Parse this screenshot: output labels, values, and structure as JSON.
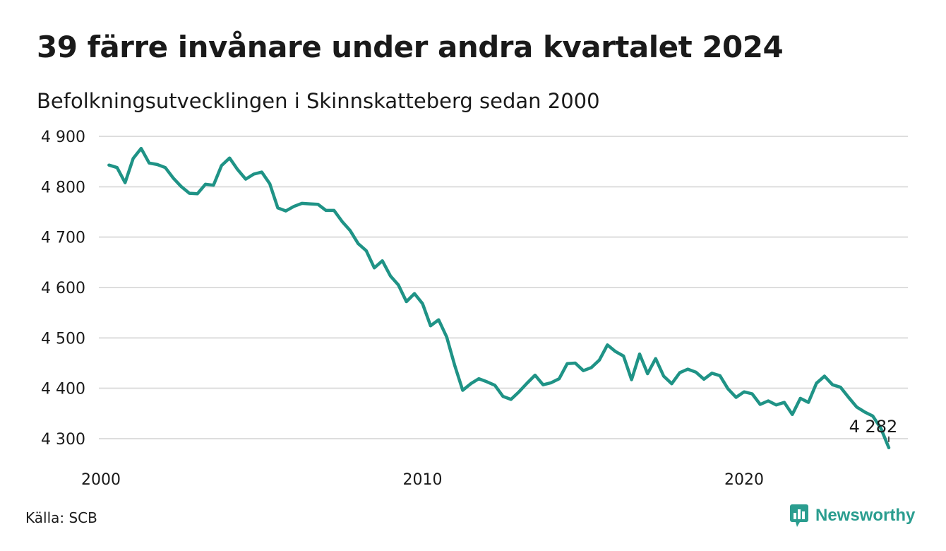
{
  "title": "39 färre invånare under andra kvartalet 2024",
  "subtitle": "Befolkningsutvecklingen i Skinnskatteberg sedan 2000",
  "source": "Källa: SCB",
  "brand": {
    "name": "Newsworthy",
    "icon": "newsworthy-logo-icon",
    "color": "#2a9d8f"
  },
  "colors": {
    "line": "#1f9386",
    "grid": "#dddddd",
    "text": "#1a1a1a"
  },
  "chart_data": {
    "type": "line",
    "title": "39 färre invånare under andra kvartalet 2024",
    "subtitle": "Befolkningsutvecklingen i Skinnskatteberg sedan 2000",
    "xlabel": "",
    "ylabel": "",
    "xlim": [
      2000,
      2025
    ],
    "ylim": [
      4280,
      4900
    ],
    "x_ticks": [
      2000,
      2010,
      2020
    ],
    "x_tick_labels": [
      "2000",
      "2010",
      "2020"
    ],
    "y_ticks": [
      4300,
      4400,
      4500,
      4600,
      4700,
      4800,
      4900
    ],
    "y_tick_labels": [
      "4 300",
      "4 400",
      "4 500",
      "4 600",
      "4 700",
      "4 800",
      "4 900"
    ],
    "grid": true,
    "annotation": {
      "label": "4 282",
      "x": 2024.5,
      "y": 4282
    },
    "series": [
      {
        "color": "#1f9386",
        "x_start": 2000.25,
        "x_step": 0.25,
        "values": [
          4843,
          4838,
          4808,
          4856,
          4876,
          4847,
          4844,
          4838,
          4817,
          4800,
          4787,
          4786,
          4805,
          4803,
          4842,
          4857,
          4834,
          4815,
          4825,
          4829,
          4806,
          4758,
          4752,
          4761,
          4767,
          4766,
          4765,
          4753,
          4753,
          4731,
          4713,
          4687,
          4673,
          4639,
          4653,
          4623,
          4605,
          4572,
          4588,
          4568,
          4524,
          4536,
          4502,
          4446,
          4396,
          4409,
          4419,
          4413,
          4406,
          4384,
          4378,
          4393,
          4410,
          4426,
          4407,
          4411,
          4419,
          4449,
          4450,
          4435,
          4441,
          4456,
          4486,
          4473,
          4464,
          4417,
          4468,
          4429,
          4459,
          4424,
          4409,
          4431,
          4438,
          4432,
          4418,
          4430,
          4425,
          4399,
          4382,
          4393,
          4389,
          4368,
          4375,
          4367,
          4372,
          4348,
          4380,
          4372,
          4410,
          4424,
          4407,
          4402,
          4382,
          4363,
          4353,
          4345,
          4321,
          4282
        ]
      }
    ]
  }
}
